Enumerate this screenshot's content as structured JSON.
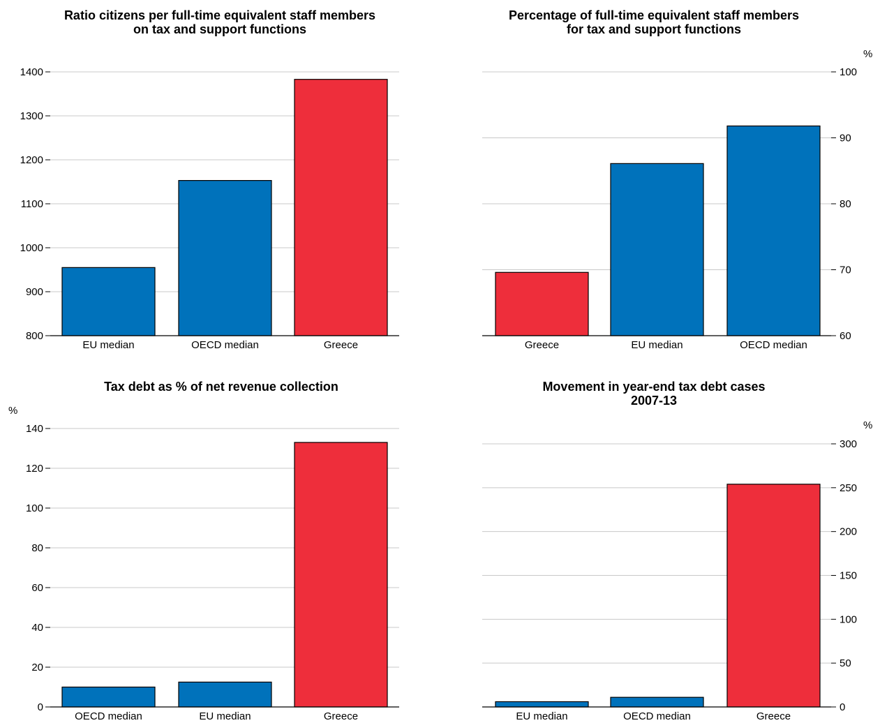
{
  "colors": {
    "blue": "#0072bb",
    "red": "#ee2e3b",
    "grid": "#c8c8c8",
    "axis": "#000000"
  },
  "chart_data": [
    {
      "type": "bar",
      "title_lines": [
        "Ratio citizens per full-time equivalent staff members",
        "on tax and support functions"
      ],
      "unit_label": "",
      "categories": [
        "EU median",
        "OECD median",
        "Greece"
      ],
      "values": [
        955,
        1153,
        1383
      ],
      "bar_colors": [
        "blue",
        "blue",
        "red"
      ],
      "ylim": [
        800,
        1400
      ],
      "yticks": [
        800,
        900,
        1000,
        1100,
        1200,
        1300,
        1400
      ],
      "axis_side": "left",
      "grid": true
    },
    {
      "type": "bar",
      "title_lines": [
        "Percentage of full-time equivalent staff members",
        "for tax and support functions"
      ],
      "unit_label": "%",
      "categories": [
        "Greece",
        "EU median",
        "OECD median"
      ],
      "values": [
        69.6,
        86.1,
        91.8
      ],
      "bar_colors": [
        "red",
        "blue",
        "blue"
      ],
      "ylim": [
        60,
        100
      ],
      "yticks": [
        60,
        70,
        80,
        90,
        100
      ],
      "axis_side": "right",
      "grid": true
    },
    {
      "type": "bar",
      "title_lines": [
        "Tax debt as % of net revenue collection"
      ],
      "unit_label": "%",
      "categories": [
        "OECD median",
        "EU median",
        "Greece"
      ],
      "values": [
        10,
        12.5,
        133
      ],
      "bar_colors": [
        "blue",
        "blue",
        "red"
      ],
      "ylim": [
        0,
        140
      ],
      "yticks": [
        0,
        20,
        40,
        60,
        80,
        100,
        120,
        140
      ],
      "axis_side": "left",
      "grid": true
    },
    {
      "type": "bar",
      "title_lines": [
        "Movement in year-end tax debt cases",
        "2007-13"
      ],
      "unit_label": "%",
      "categories": [
        "EU median",
        "OECD median",
        "Greece"
      ],
      "values": [
        6,
        11,
        254
      ],
      "bar_colors": [
        "blue",
        "blue",
        "red"
      ],
      "ylim": [
        0,
        300
      ],
      "yticks": [
        0,
        50,
        100,
        150,
        200,
        250,
        300
      ],
      "axis_side": "right",
      "grid": true
    }
  ]
}
